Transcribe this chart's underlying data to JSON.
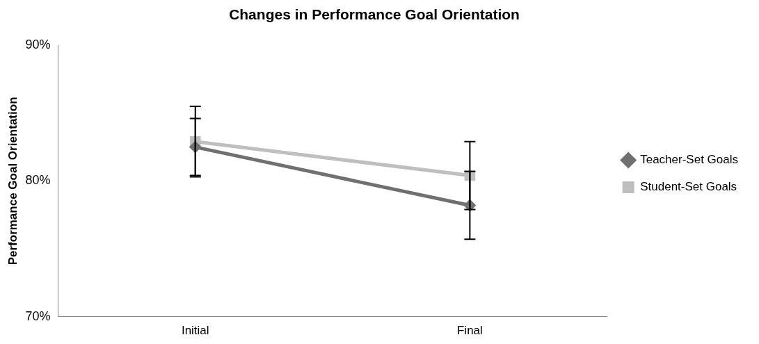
{
  "chart_data": {
    "type": "line",
    "title": "Changes in Performance Goal Orientation",
    "ylabel": "Performance Goal Orientation",
    "categories": [
      "Initial",
      "Final"
    ],
    "series": [
      {
        "name": "Teacher-Set Goals",
        "color": "#707070",
        "values": [
          82.5,
          78.2
        ],
        "errors": [
          2.1,
          2.5
        ],
        "marker": "diamond"
      },
      {
        "name": "Student-Set Goals",
        "color": "#bfbfbf",
        "values": [
          82.9,
          80.4
        ],
        "errors": [
          2.6,
          2.5
        ],
        "marker": "square"
      }
    ],
    "ylim": [
      70,
      90
    ],
    "yticks": [
      {
        "value": 70,
        "label": "70%"
      },
      {
        "value": 80,
        "label": "80%"
      },
      {
        "value": 90,
        "label": "90%"
      }
    ],
    "grid": false,
    "legend": "right",
    "line_style": "solid"
  }
}
